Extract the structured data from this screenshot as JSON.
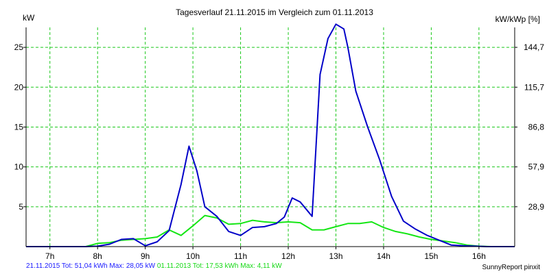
{
  "chart_data": {
    "type": "line",
    "title": "Tagesverlauf 21.11.2015 im Vergleich zum 01.11.2013",
    "ylabel_left": "kW",
    "ylabel_right": "kW/kWp [%]",
    "xlabel": "",
    "xlim": [
      6.5,
      16.75
    ],
    "ylim": [
      0,
      27.5
    ],
    "x_ticks": [
      7,
      8,
      9,
      10,
      11,
      12,
      13,
      14,
      15,
      16
    ],
    "x_tick_labels": [
      "7h",
      "8h",
      "9h",
      "10h",
      "11h",
      "12h",
      "13h",
      "14h",
      "15h",
      "16h"
    ],
    "y_ticks_left": [
      5,
      10,
      15,
      20,
      25
    ],
    "y_tick_labels_left": [
      "5",
      "10",
      "15",
      "20",
      "25"
    ],
    "y_ticks_right_at": [
      5,
      10,
      15,
      20,
      25
    ],
    "y_tick_labels_right": [
      "28,9",
      "57,9",
      "86,8",
      "115,7",
      "144,7"
    ],
    "grid": true,
    "series": [
      {
        "name": "21.11.2015",
        "color": "#0000c8",
        "x": [
          6.5,
          7.0,
          7.5,
          7.75,
          8.0,
          8.25,
          8.5,
          8.75,
          9.0,
          9.25,
          9.5,
          9.75,
          9.917,
          10.083,
          10.25,
          10.5,
          10.75,
          11.0,
          11.25,
          11.5,
          11.75,
          11.917,
          12.083,
          12.25,
          12.5,
          12.667,
          12.833,
          13.0,
          13.167,
          13.25,
          13.417,
          13.667,
          13.917,
          14.167,
          14.417,
          14.667,
          14.917,
          15.167,
          15.417,
          15.667,
          15.917,
          16.167,
          16.75
        ],
        "y": [
          0,
          0,
          0,
          0,
          0.05,
          0.3,
          0.9,
          1.0,
          0.1,
          0.6,
          2.0,
          7.8,
          12.6,
          9.5,
          5.0,
          3.8,
          1.9,
          1.4,
          2.4,
          2.5,
          2.9,
          3.7,
          6.1,
          5.6,
          3.8,
          21.6,
          26.1,
          27.9,
          27.3,
          25.0,
          19.5,
          15.0,
          10.9,
          6.3,
          3.2,
          2.2,
          1.4,
          0.8,
          0.2,
          0.1,
          0.05,
          0,
          0
        ]
      },
      {
        "name": "01.11.2013",
        "color": "#14e614",
        "x": [
          6.5,
          7.0,
          7.5,
          7.75,
          8.0,
          8.25,
          8.5,
          8.75,
          9.0,
          9.25,
          9.5,
          9.75,
          10.0,
          10.25,
          10.5,
          10.75,
          11.0,
          11.25,
          11.5,
          11.75,
          12.0,
          12.25,
          12.5,
          12.75,
          13.0,
          13.25,
          13.5,
          13.75,
          14.0,
          14.25,
          14.5,
          14.75,
          15.0,
          15.25,
          15.5,
          15.75,
          16.0,
          16.25,
          16.75
        ],
        "y": [
          0,
          0,
          0,
          0,
          0.4,
          0.5,
          0.8,
          0.9,
          1.0,
          1.2,
          2.1,
          1.4,
          2.6,
          3.9,
          3.6,
          2.8,
          2.9,
          3.3,
          3.1,
          3.0,
          3.1,
          3.0,
          2.1,
          2.1,
          2.5,
          2.9,
          2.9,
          3.1,
          2.4,
          1.9,
          1.6,
          1.2,
          0.9,
          0.7,
          0.5,
          0.2,
          0.05,
          0,
          0
        ]
      }
    ]
  },
  "footer": {
    "series1": "21.11.2015 Tot: 51,04 kWh Max: 28,05 kW",
    "series2": "01.11.2013 Tot: 17,53 kWh Max: 4,11 kW",
    "brand": "SunnyReport pinxit"
  }
}
